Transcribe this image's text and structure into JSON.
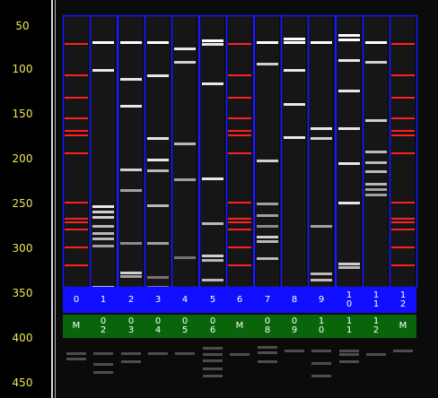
{
  "ruler": {
    "ticks": [
      "50",
      "100",
      "150",
      "200",
      "250",
      "300",
      "350",
      "400",
      "450"
    ]
  },
  "lanes": [
    {
      "number": "0",
      "sample": "M"
    },
    {
      "number": "1",
      "sample": "0\n2"
    },
    {
      "number": "2",
      "sample": "0\n3"
    },
    {
      "number": "3",
      "sample": "0\n4"
    },
    {
      "number": "4",
      "sample": "0\n5"
    },
    {
      "number": "5",
      "sample": "0\n6"
    },
    {
      "number": "6",
      "sample": "M"
    },
    {
      "number": "7",
      "sample": "0\n8"
    },
    {
      "number": "8",
      "sample": "0\n9"
    },
    {
      "number": "9",
      "sample": "1\n0"
    },
    {
      "number": "1\n0",
      "sample": "1\n1"
    },
    {
      "number": "1\n1",
      "sample": "1\n2"
    },
    {
      "number": "1\n2",
      "sample": "M"
    }
  ],
  "colors": {
    "lane_outline": "#1a1aff",
    "marker_band": "#ff2020",
    "band": "#ffffff",
    "number_bar": "#1010ff",
    "sample_bar": "#0a640a",
    "ruler_text": "#e8e85a"
  }
}
